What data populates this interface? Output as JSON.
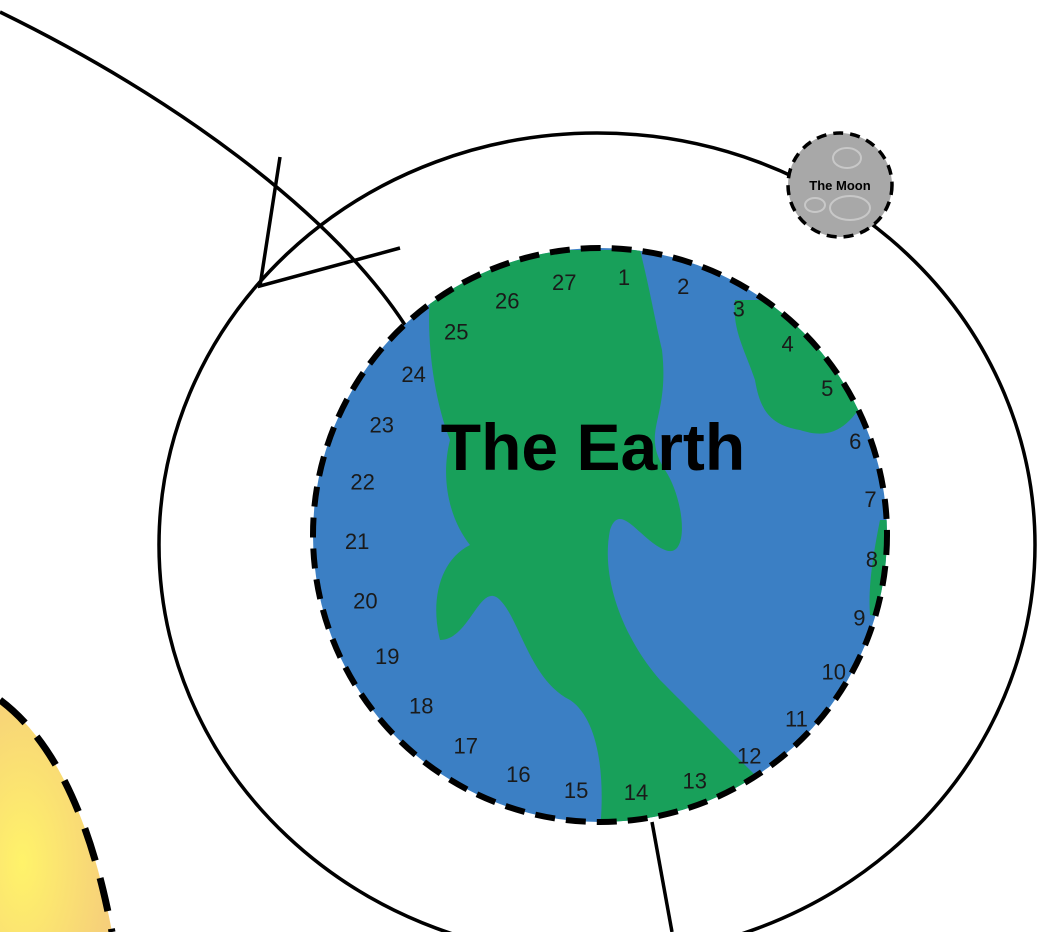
{
  "earth": {
    "label": "The Earth",
    "ocean_color": "#3b7fc4",
    "land_color": "#18a05a",
    "numbers": [
      "1",
      "2",
      "3",
      "4",
      "5",
      "6",
      "7",
      "8",
      "9",
      "10",
      "11",
      "12",
      "13",
      "14",
      "15",
      "16",
      "17",
      "18",
      "19",
      "20",
      "21",
      "22",
      "23",
      "24",
      "25",
      "26",
      "27"
    ]
  },
  "moon": {
    "label": "The Moon",
    "color": "#a8a8a8"
  },
  "sun": {
    "colors": [
      "#fff36a",
      "#f6cf7a"
    ]
  }
}
